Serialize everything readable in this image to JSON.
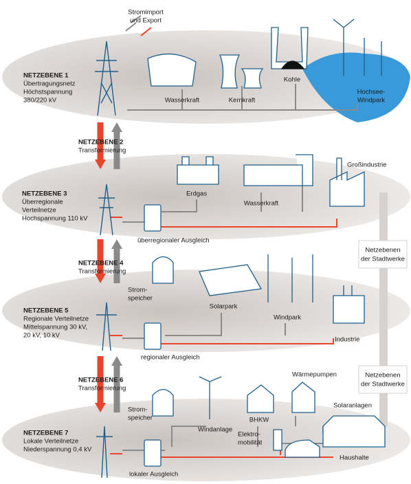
{
  "import_export": [
    "Stromimport",
    "und Export"
  ],
  "levels": [
    {
      "title": "NETZEBENE 1",
      "lines": [
        "Übertragungsnetz",
        "Höchstspannung",
        "380/220 kV"
      ]
    },
    {
      "title": "NETZEBENE 3",
      "lines": [
        "Überregionale",
        "Verteilnetze",
        "Hochspannung 110 kV"
      ]
    },
    {
      "title": "NETZEBENE 5",
      "lines": [
        "Regionale Verteilnetze",
        "Mittelspannung 30 kV,",
        "20 kV, 10 kV"
      ]
    },
    {
      "title": "NETZEBENE 7",
      "lines": [
        "Lokale Verteilnetze",
        "Niederspannung 0,4 kV"
      ]
    }
  ],
  "transformations": [
    {
      "title": "NETZEBENE 2",
      "text": "Transformierung"
    },
    {
      "title": "NETZEBENE 4",
      "text": "Transformierung"
    },
    {
      "title": "NETZEBENE 6",
      "text": "Transformierung"
    }
  ],
  "level1_labels": {
    "wasserkraft": "Wasserkraft",
    "kernkraft": "Kernkraft",
    "kohle": "Kohle",
    "windpark": [
      "Hochsee-",
      "Windpark"
    ]
  },
  "level3_labels": {
    "erdgas": "Erdgas",
    "wasserkraft": "Wasserkraft",
    "grossindustrie": "Großindustrie",
    "ausgleich": "überregionaler Ausgleich"
  },
  "level5_labels": {
    "speicher": [
      "Strom-",
      "speicher"
    ],
    "solarpark": "Solarpark",
    "windpark": "Windpark",
    "industrie": "Industrie",
    "ausgleich": "regionaler Ausgleich"
  },
  "level7_labels": {
    "speicher": [
      "Strom-",
      "speicher"
    ],
    "windanlage": "Windanlage",
    "bhkw": "BHKW",
    "waermepumpen": "Wärmepumpen",
    "solaranlagen": "Solaranlagen",
    "elektromobilitaet": [
      "Elektro-",
      "mobilität"
    ],
    "haushalte": "Haushalte",
    "ausgleich": "lokaler Ausgleich"
  },
  "stadtwerke": [
    [
      "Netzebenen",
      "der Stadtwerke"
    ],
    [
      "Netzebenen",
      "der Stadtwerke"
    ]
  ]
}
